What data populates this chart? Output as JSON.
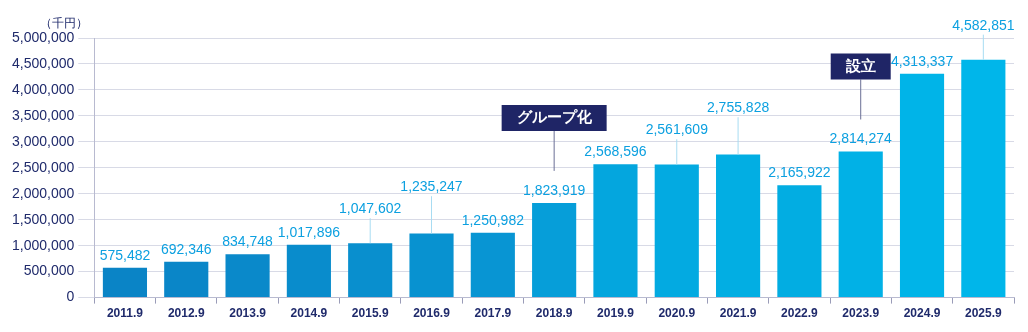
{
  "chart_data": {
    "type": "bar",
    "ylabel": "（千円）",
    "categories": [
      "2011.9",
      "2012.9",
      "2013.9",
      "2014.9",
      "2015.9",
      "2016.9",
      "2017.9",
      "2018.9",
      "2019.9",
      "2020.9",
      "2021.9",
      "2022.9",
      "2023.9",
      "2024.9",
      "2025.9"
    ],
    "values": [
      575482,
      692346,
      834748,
      1017896,
      1047602,
      1235247,
      1250982,
      1823919,
      2568596,
      2561609,
      2755828,
      2165922,
      2814274,
      4313337,
      4582851
    ],
    "colors": [
      "#0a84c6",
      "#0a86c8",
      "#0a89ca",
      "#098ccc",
      "#098fce",
      "#0892d0",
      "#0895d3",
      "#069ed9",
      "#04a6de",
      "#03aae1",
      "#02aee3",
      "#02ade2",
      "#01b1e6",
      "#00b4e8",
      "#00b6ea"
    ],
    "value_labels": [
      "575,482",
      "692,346",
      "834,748",
      "1,017,896",
      "1,047,602",
      "1,235,247",
      "1,250,982",
      "1,823,919",
      "2,568,596",
      "2,561,609",
      "2,755,828",
      "2,165,922",
      "2,814,274",
      "4,313,337",
      "4,582,851"
    ],
    "ylim": [
      0,
      5000000
    ],
    "yticks": [
      0,
      {
        "value": 500000,
        "label": "500,000"
      },
      {
        "value": 1000000,
        "label": "1,000,000"
      },
      {
        "value": 1500000,
        "label": "1,500,000"
      },
      {
        "value": 2000000,
        "label": "2,000,000"
      },
      {
        "value": 2500000,
        "label": "2,500,000"
      },
      {
        "value": 3000000,
        "label": "3,000,000"
      },
      {
        "value": 3500000,
        "label": "3,500,000"
      },
      {
        "value": 4000000,
        "label": "4,000,000"
      },
      {
        "value": 4500000,
        "label": "4,500,000"
      },
      {
        "value": 5000000,
        "label": "5,000,000"
      }
    ],
    "grid": "y",
    "annotations": [
      {
        "text": "グループ化",
        "x": "2018.9"
      },
      {
        "text": "設立",
        "x": "2023.9"
      }
    ]
  }
}
